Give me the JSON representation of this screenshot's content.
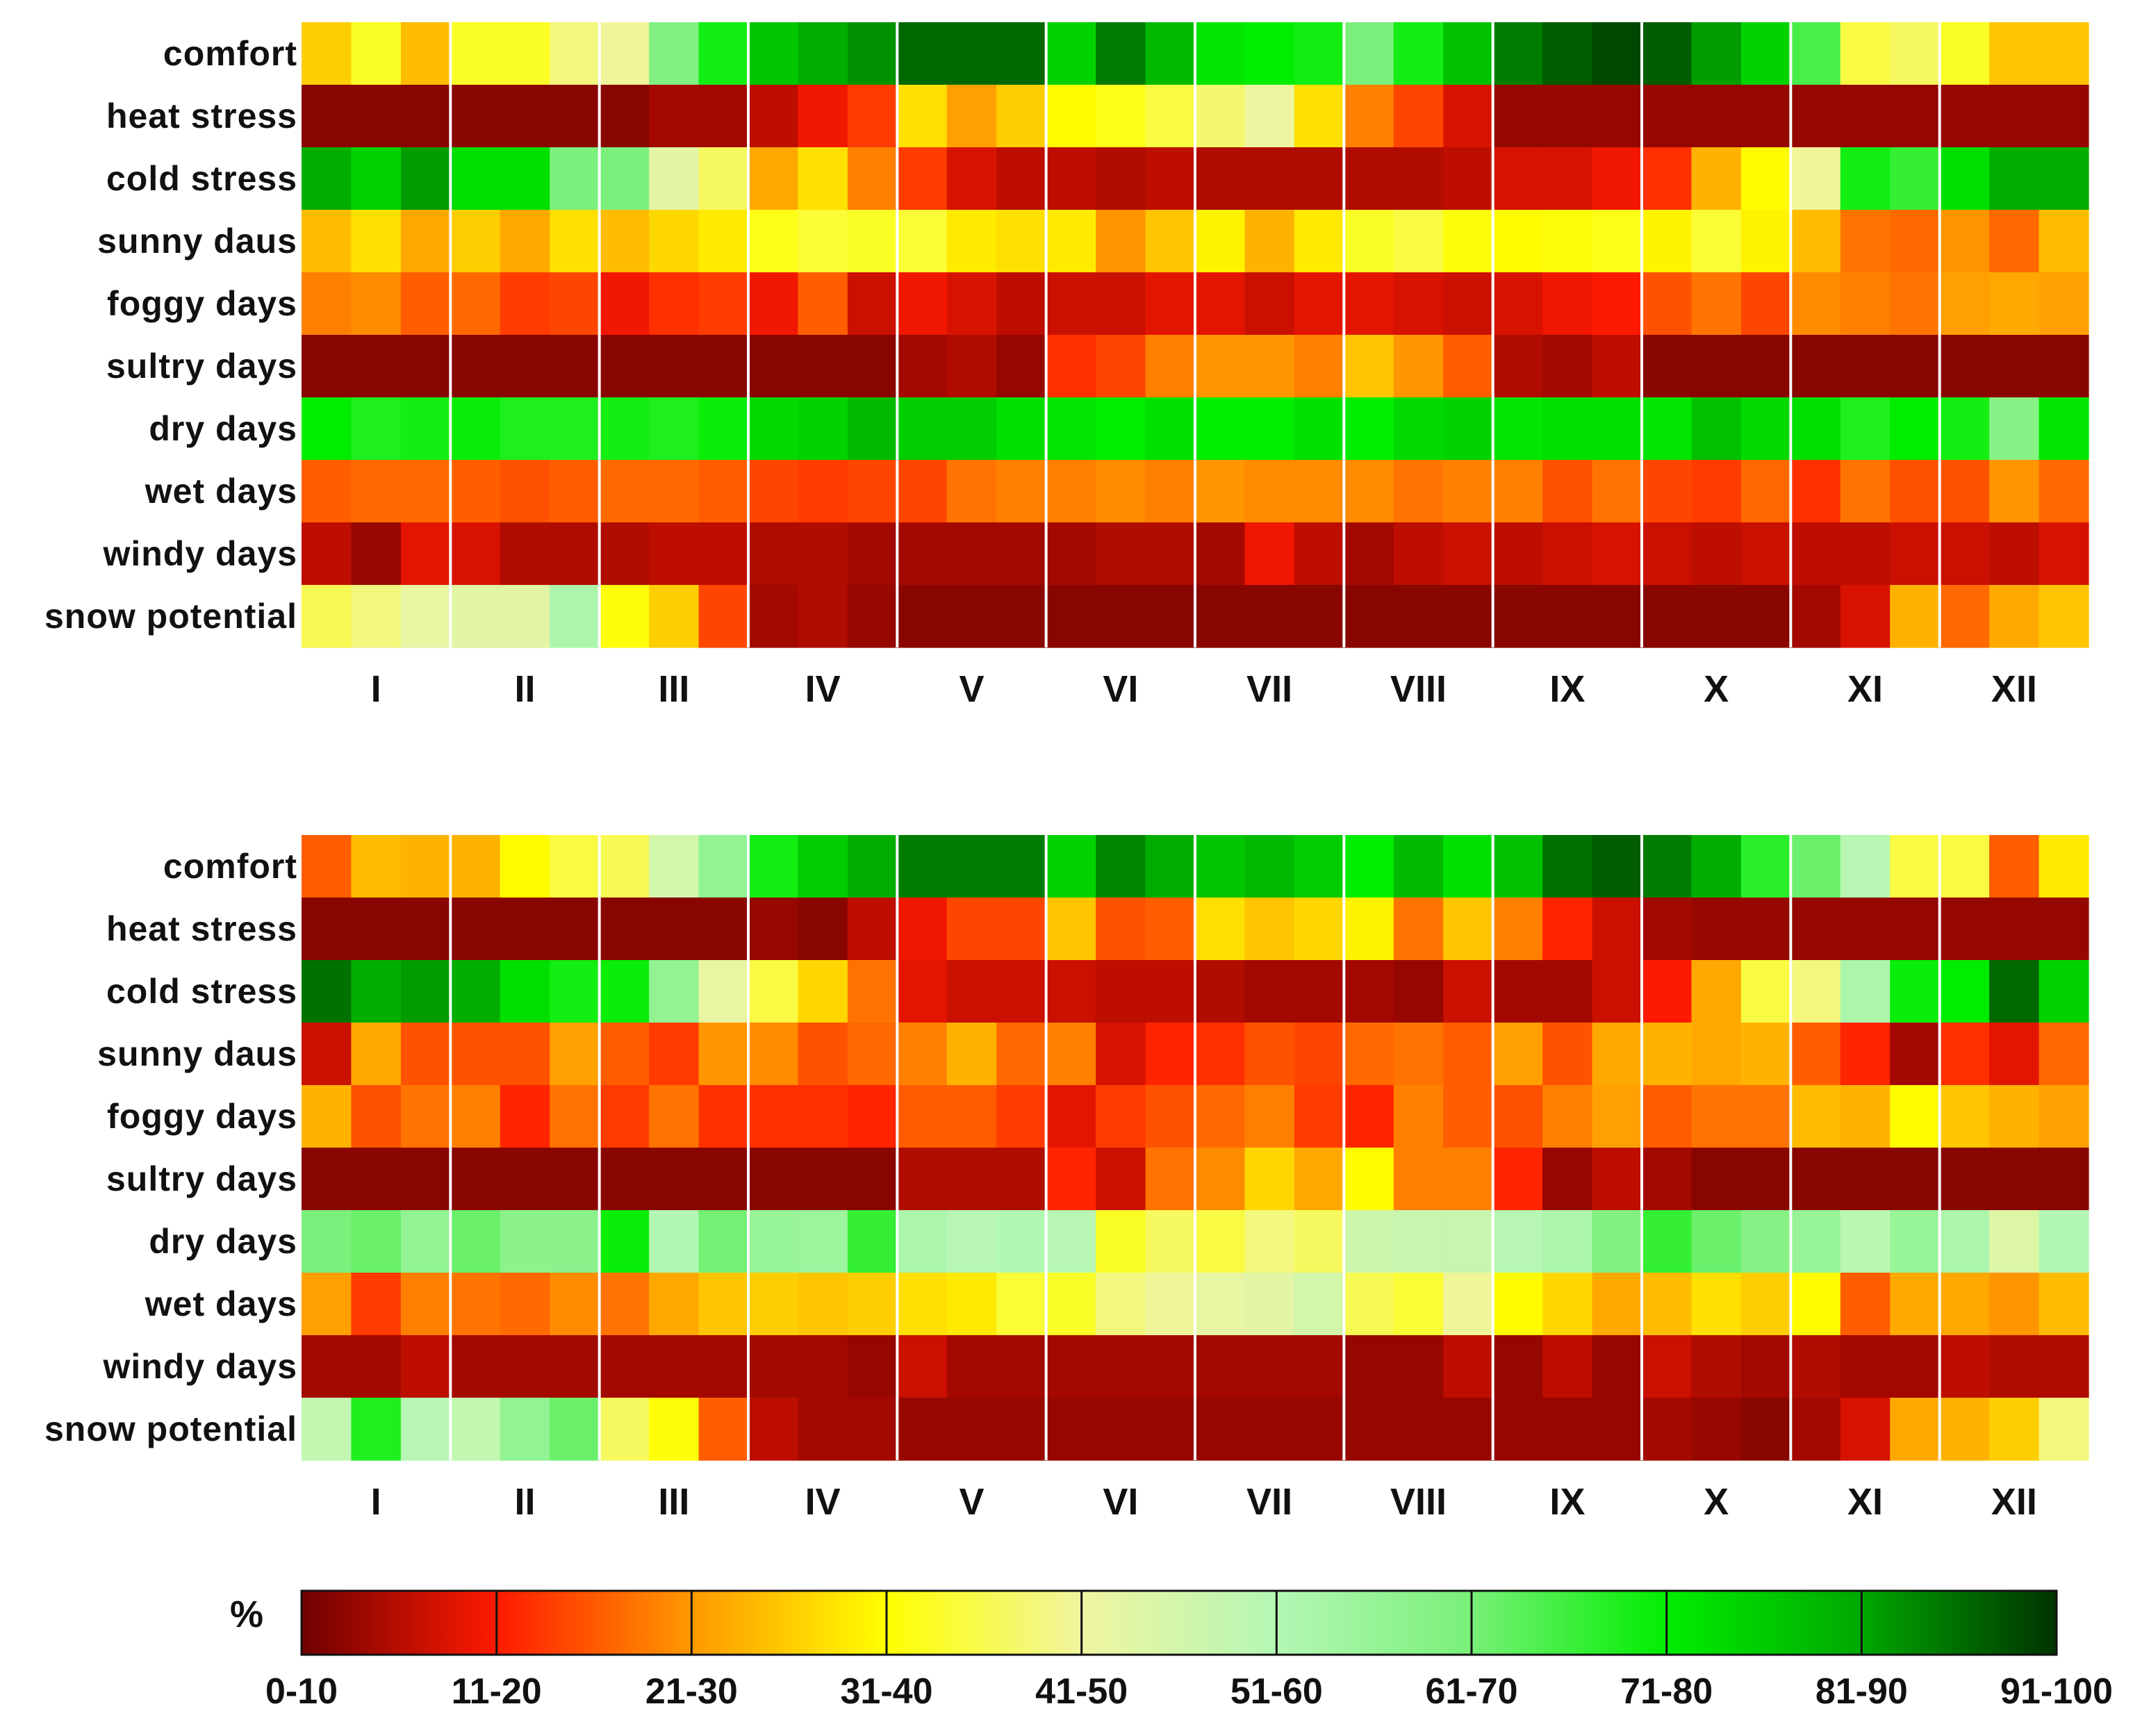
{
  "chart_data": {
    "type": "heatmap",
    "unit": "%",
    "rows": [
      "comfort",
      "heat stress",
      "cold stress",
      "sunny daus",
      "foggy days",
      "sultry days",
      "dry days",
      "wet days",
      "windy days",
      "snow potential"
    ],
    "months": [
      "I",
      "II",
      "III",
      "IV",
      "V",
      "VI",
      "VII",
      "VIII",
      "IX",
      "X",
      "XI",
      "XII"
    ],
    "columns_per_month": 3,
    "colorbar": {
      "label": "%",
      "classes": [
        "0-10",
        "11-20",
        "21-30",
        "31-40",
        "41-50",
        "51-60",
        "61-70",
        "71-80",
        "81-90",
        "91-100"
      ],
      "stops": [
        "#6f0000",
        "#ff1a00",
        "#ff9900",
        "#ffff00",
        "#f0f5a0",
        "#b4f7b4",
        "#78f078",
        "#00ee00",
        "#00a800",
        "#003300"
      ]
    },
    "panels": [
      {
        "name": "top",
        "values": [
          [
            28,
            36,
            26,
            36,
            36,
            42,
            44,
            65,
            76,
            84,
            88,
            91,
            95,
            95,
            95,
            82,
            93,
            86,
            79,
            78,
            76,
            66,
            76,
            85,
            93,
            96,
            98,
            96,
            90,
            82,
            71,
            38,
            40,
            36,
            27,
            27
          ],
          [
            2,
            2,
            2,
            2,
            2,
            2,
            2,
            4,
            4,
            6,
            10,
            14,
            30,
            23,
            28,
            33,
            35,
            38,
            41,
            45,
            30,
            20,
            15,
            8,
            3,
            3,
            3,
            3,
            3,
            3,
            3,
            3,
            3,
            3,
            3,
            3
          ],
          [
            88,
            82,
            90,
            80,
            80,
            66,
            66,
            47,
            40,
            24,
            30,
            20,
            14,
            8,
            6,
            6,
            5,
            6,
            5,
            5,
            5,
            5,
            5,
            6,
            8,
            8,
            10,
            13,
            25,
            33,
            44,
            76,
            73,
            80,
            88,
            88
          ],
          [
            26,
            30,
            24,
            28,
            24,
            30,
            26,
            29,
            31,
            35,
            37,
            36,
            37,
            31,
            30,
            31,
            22,
            27,
            32,
            25,
            31,
            36,
            38,
            34,
            33,
            34,
            35,
            32,
            37,
            32,
            26,
            19,
            18,
            22,
            18,
            26
          ],
          [
            20,
            21,
            17,
            18,
            14,
            15,
            10,
            13,
            14,
            10,
            17,
            7,
            10,
            8,
            6,
            7,
            7,
            9,
            9,
            7,
            9,
            9,
            8,
            7,
            8,
            10,
            11,
            16,
            19,
            15,
            21,
            20,
            19,
            23,
            24,
            23
          ],
          [
            2,
            2,
            2,
            2,
            2,
            2,
            2,
            2,
            2,
            2,
            2,
            2,
            4,
            5,
            3,
            13,
            15,
            20,
            22,
            22,
            20,
            27,
            22,
            17,
            5,
            4,
            6,
            2,
            2,
            2,
            2,
            2,
            2,
            2,
            2,
            2
          ],
          [
            78,
            75,
            76,
            77,
            75,
            75,
            76,
            75,
            77,
            81,
            82,
            86,
            83,
            83,
            80,
            79,
            78,
            80,
            78,
            78,
            80,
            78,
            81,
            82,
            79,
            80,
            80,
            79,
            85,
            81,
            80,
            75,
            78,
            76,
            64,
            79
          ],
          [
            17,
            18,
            18,
            17,
            16,
            17,
            18,
            18,
            17,
            15,
            14,
            15,
            15,
            19,
            20,
            20,
            21,
            20,
            22,
            21,
            21,
            21,
            19,
            20,
            20,
            16,
            19,
            15,
            14,
            18,
            13,
            19,
            16,
            16,
            22,
            18
          ],
          [
            6,
            3,
            9,
            8,
            5,
            5,
            5,
            6,
            6,
            5,
            5,
            4,
            4,
            4,
            4,
            4,
            5,
            5,
            4,
            10,
            6,
            4,
            6,
            7,
            6,
            7,
            8,
            7,
            6,
            7,
            6,
            6,
            7,
            7,
            6,
            8
          ],
          [
            39,
            42,
            46,
            47,
            47,
            57,
            34,
            28,
            15,
            4,
            5,
            3,
            2,
            2,
            2,
            2,
            2,
            2,
            2,
            2,
            2,
            2,
            2,
            2,
            2,
            2,
            2,
            2,
            2,
            2,
            4,
            8,
            25,
            18,
            24,
            27
          ]
        ]
      },
      {
        "name": "bottom",
        "values": [
          [
            17,
            26,
            25,
            25,
            33,
            38,
            39,
            50,
            62,
            76,
            83,
            88,
            93,
            93,
            93,
            82,
            92,
            88,
            84,
            86,
            83,
            78,
            86,
            80,
            85,
            94,
            96,
            93,
            88,
            74,
            68,
            55,
            38,
            38,
            17,
            31
          ],
          [
            2,
            2,
            2,
            2,
            2,
            2,
            2,
            2,
            2,
            3,
            2,
            6,
            10,
            15,
            15,
            27,
            16,
            17,
            30,
            27,
            29,
            32,
            19,
            27,
            20,
            12,
            7,
            4,
            3,
            3,
            3,
            3,
            3,
            3,
            3,
            3
          ],
          [
            94,
            88,
            90,
            88,
            80,
            76,
            77,
            62,
            46,
            38,
            29,
            19,
            9,
            7,
            7,
            7,
            6,
            6,
            5,
            4,
            4,
            4,
            3,
            7,
            4,
            4,
            7,
            11,
            24,
            38,
            42,
            57,
            77,
            78,
            95,
            82
          ],
          [
            7,
            24,
            16,
            16,
            16,
            23,
            17,
            14,
            22,
            21,
            16,
            18,
            20,
            25,
            18,
            20,
            8,
            12,
            13,
            16,
            15,
            18,
            19,
            17,
            23,
            16,
            24,
            25,
            24,
            25,
            17,
            12,
            4,
            13,
            9,
            18
          ],
          [
            25,
            16,
            19,
            20,
            12,
            19,
            14,
            19,
            13,
            13,
            13,
            12,
            17,
            17,
            14,
            9,
            14,
            16,
            18,
            20,
            14,
            12,
            20,
            17,
            16,
            20,
            23,
            17,
            19,
            19,
            26,
            25,
            33,
            27,
            25,
            23
          ],
          [
            2,
            2,
            2,
            2,
            2,
            2,
            2,
            2,
            2,
            2,
            2,
            2,
            5,
            5,
            5,
            12,
            7,
            19,
            21,
            29,
            24,
            33,
            20,
            20,
            12,
            3,
            6,
            4,
            2,
            2,
            2,
            2,
            2,
            2,
            2,
            2
          ],
          [
            66,
            68,
            62,
            68,
            63,
            63,
            77,
            56,
            67,
            61,
            60,
            73,
            57,
            55,
            56,
            55,
            36,
            40,
            38,
            42,
            40,
            51,
            52,
            52,
            55,
            57,
            65,
            73,
            68,
            64,
            61,
            54,
            61,
            57,
            48,
            56
          ],
          [
            23,
            14,
            20,
            19,
            18,
            21,
            19,
            24,
            27,
            28,
            27,
            28,
            30,
            31,
            37,
            36,
            42,
            44,
            46,
            47,
            50,
            39,
            37,
            44,
            33,
            29,
            24,
            26,
            30,
            28,
            33,
            17,
            24,
            24,
            22,
            26
          ],
          [
            4,
            4,
            6,
            4,
            4,
            4,
            4,
            4,
            4,
            4,
            4,
            3,
            7,
            4,
            4,
            4,
            4,
            4,
            4,
            4,
            4,
            3,
            3,
            6,
            3,
            6,
            3,
            7,
            5,
            4,
            5,
            4,
            4,
            6,
            5,
            5
          ],
          [
            53,
            75,
            55,
            53,
            62,
            68,
            40,
            34,
            17,
            6,
            4,
            4,
            3,
            3,
            3,
            3,
            3,
            3,
            3,
            3,
            3,
            3,
            3,
            3,
            3,
            3,
            3,
            4,
            3,
            2,
            4,
            8,
            24,
            25,
            28,
            42
          ]
        ]
      }
    ]
  }
}
